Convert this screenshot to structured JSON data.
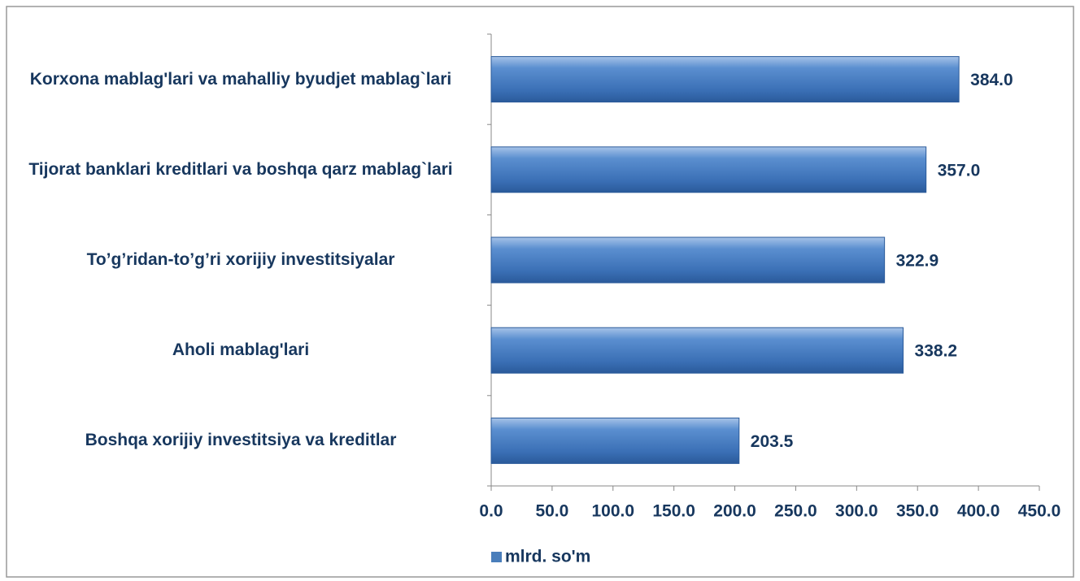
{
  "chart_data": {
    "type": "bar",
    "orientation": "horizontal",
    "categories": [
      "Korxona mablag'lari va mahalliy byudjet mablag`lari",
      "Tijorat banklari kreditlari va boshqa qarz mablag`lari",
      "To’g’ridan-to’g’ri xorijiy investitsiyalar",
      "Aholi mablag'lari",
      "Boshqa xorijiy investitsiya va kreditlar"
    ],
    "series": [
      {
        "name": "mlrd. so'm",
        "color": "#4a7ebb",
        "values": [
          384.0,
          357.0,
          322.9,
          338.2,
          203.5
        ],
        "value_labels": [
          "384.0",
          "357.0",
          "322.9",
          "338.2",
          "203.5"
        ]
      }
    ],
    "xlim": [
      0,
      450
    ],
    "xticks": [
      {
        "value": 0,
        "label": "0.0"
      },
      {
        "value": 50,
        "label": "50.0"
      },
      {
        "value": 100,
        "label": "100.0"
      },
      {
        "value": 150,
        "label": "150.0"
      },
      {
        "value": 200,
        "label": "200.0"
      },
      {
        "value": 250,
        "label": "250.0"
      },
      {
        "value": 300,
        "label": "300.0"
      },
      {
        "value": 350,
        "label": "350.0"
      },
      {
        "value": 400,
        "label": "400.0"
      },
      {
        "value": 450,
        "label": "450.0"
      }
    ],
    "legend": "bottom",
    "grid": false
  }
}
